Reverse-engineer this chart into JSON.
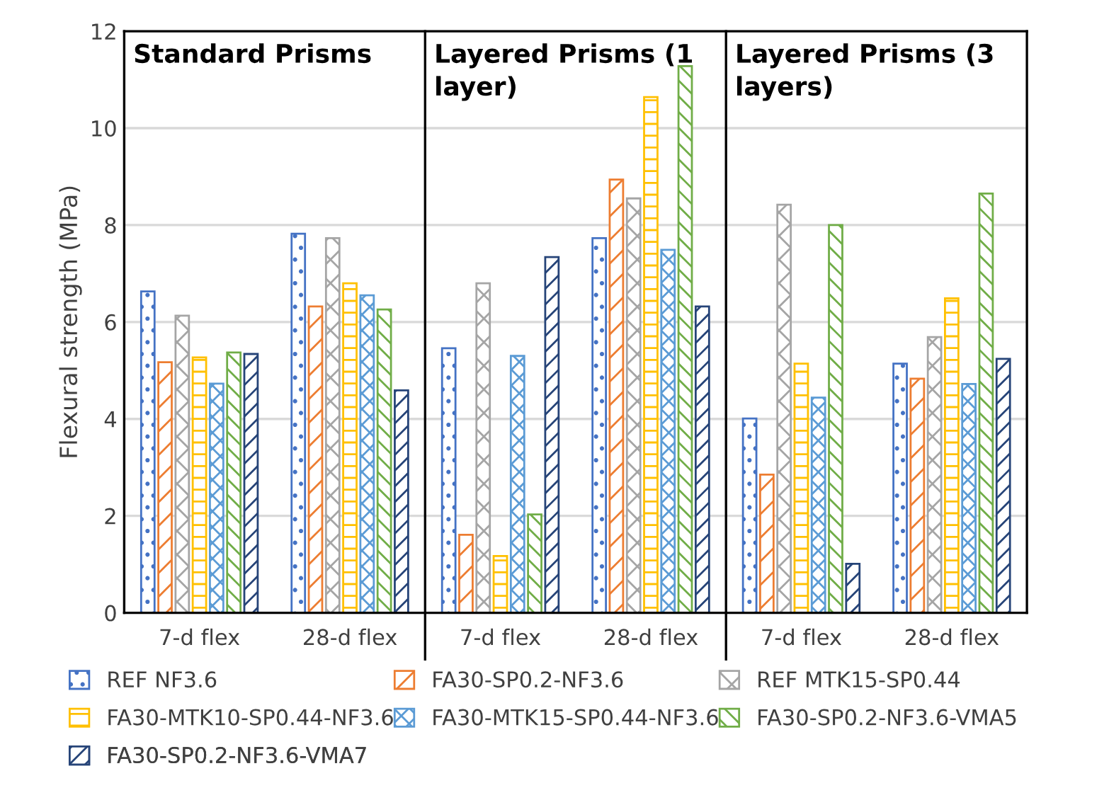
{
  "chart_data": {
    "type": "bar",
    "ylabel": "Flexural strength (MPa)",
    "categories": [
      "7-d flex",
      "28-d flex",
      "7-d flex",
      "28-d flex",
      "7-d flex",
      "28-d flex"
    ],
    "series": [
      {
        "name": "REF NF3.6",
        "color": "#4472c4",
        "values": [
          6.63,
          7.82,
          5.46,
          7.73,
          4.01,
          5.14
        ]
      },
      {
        "name": "FA30-SP0.2-NF3.6",
        "color": "#ed7d31",
        "values": [
          5.17,
          6.32,
          1.61,
          8.94,
          2.85,
          4.83
        ]
      },
      {
        "name": "REF MTK15-SP0.44",
        "color": "#a5a5a5",
        "values": [
          6.13,
          7.73,
          6.8,
          8.55,
          8.42,
          5.69
        ]
      },
      {
        "name": "FA30-MTK10-SP0.44-NF3.6",
        "color": "#ffc000",
        "values": [
          5.27,
          6.8,
          1.17,
          10.64,
          5.14,
          6.49
        ]
      },
      {
        "name": "FA30-MTK15-SP0.44-NF3.6",
        "color": "#5b9bd5",
        "values": [
          4.73,
          6.55,
          5.3,
          7.49,
          4.44,
          4.72
        ]
      },
      {
        "name": "FA30-SP0.2-NF3.6-VMA5",
        "color": "#70ad47",
        "values": [
          5.37,
          6.26,
          2.03,
          11.28,
          8.0,
          8.65
        ]
      },
      {
        "name": "FA30-SP0.2-NF3.6-VMA7",
        "color": "#264478",
        "values": [
          5.34,
          4.59,
          7.34,
          6.32,
          1.01,
          5.24
        ]
      }
    ],
    "annotations": [
      "Standard Prisms",
      "Layered Prisms (1\nlayer)",
      "Layered Prisms (3\nlayers)"
    ],
    "ylim": [
      0,
      12
    ],
    "yticks": [
      0,
      2,
      4,
      6,
      8,
      10,
      12
    ],
    "grid": "y",
    "legend": "bottom"
  }
}
